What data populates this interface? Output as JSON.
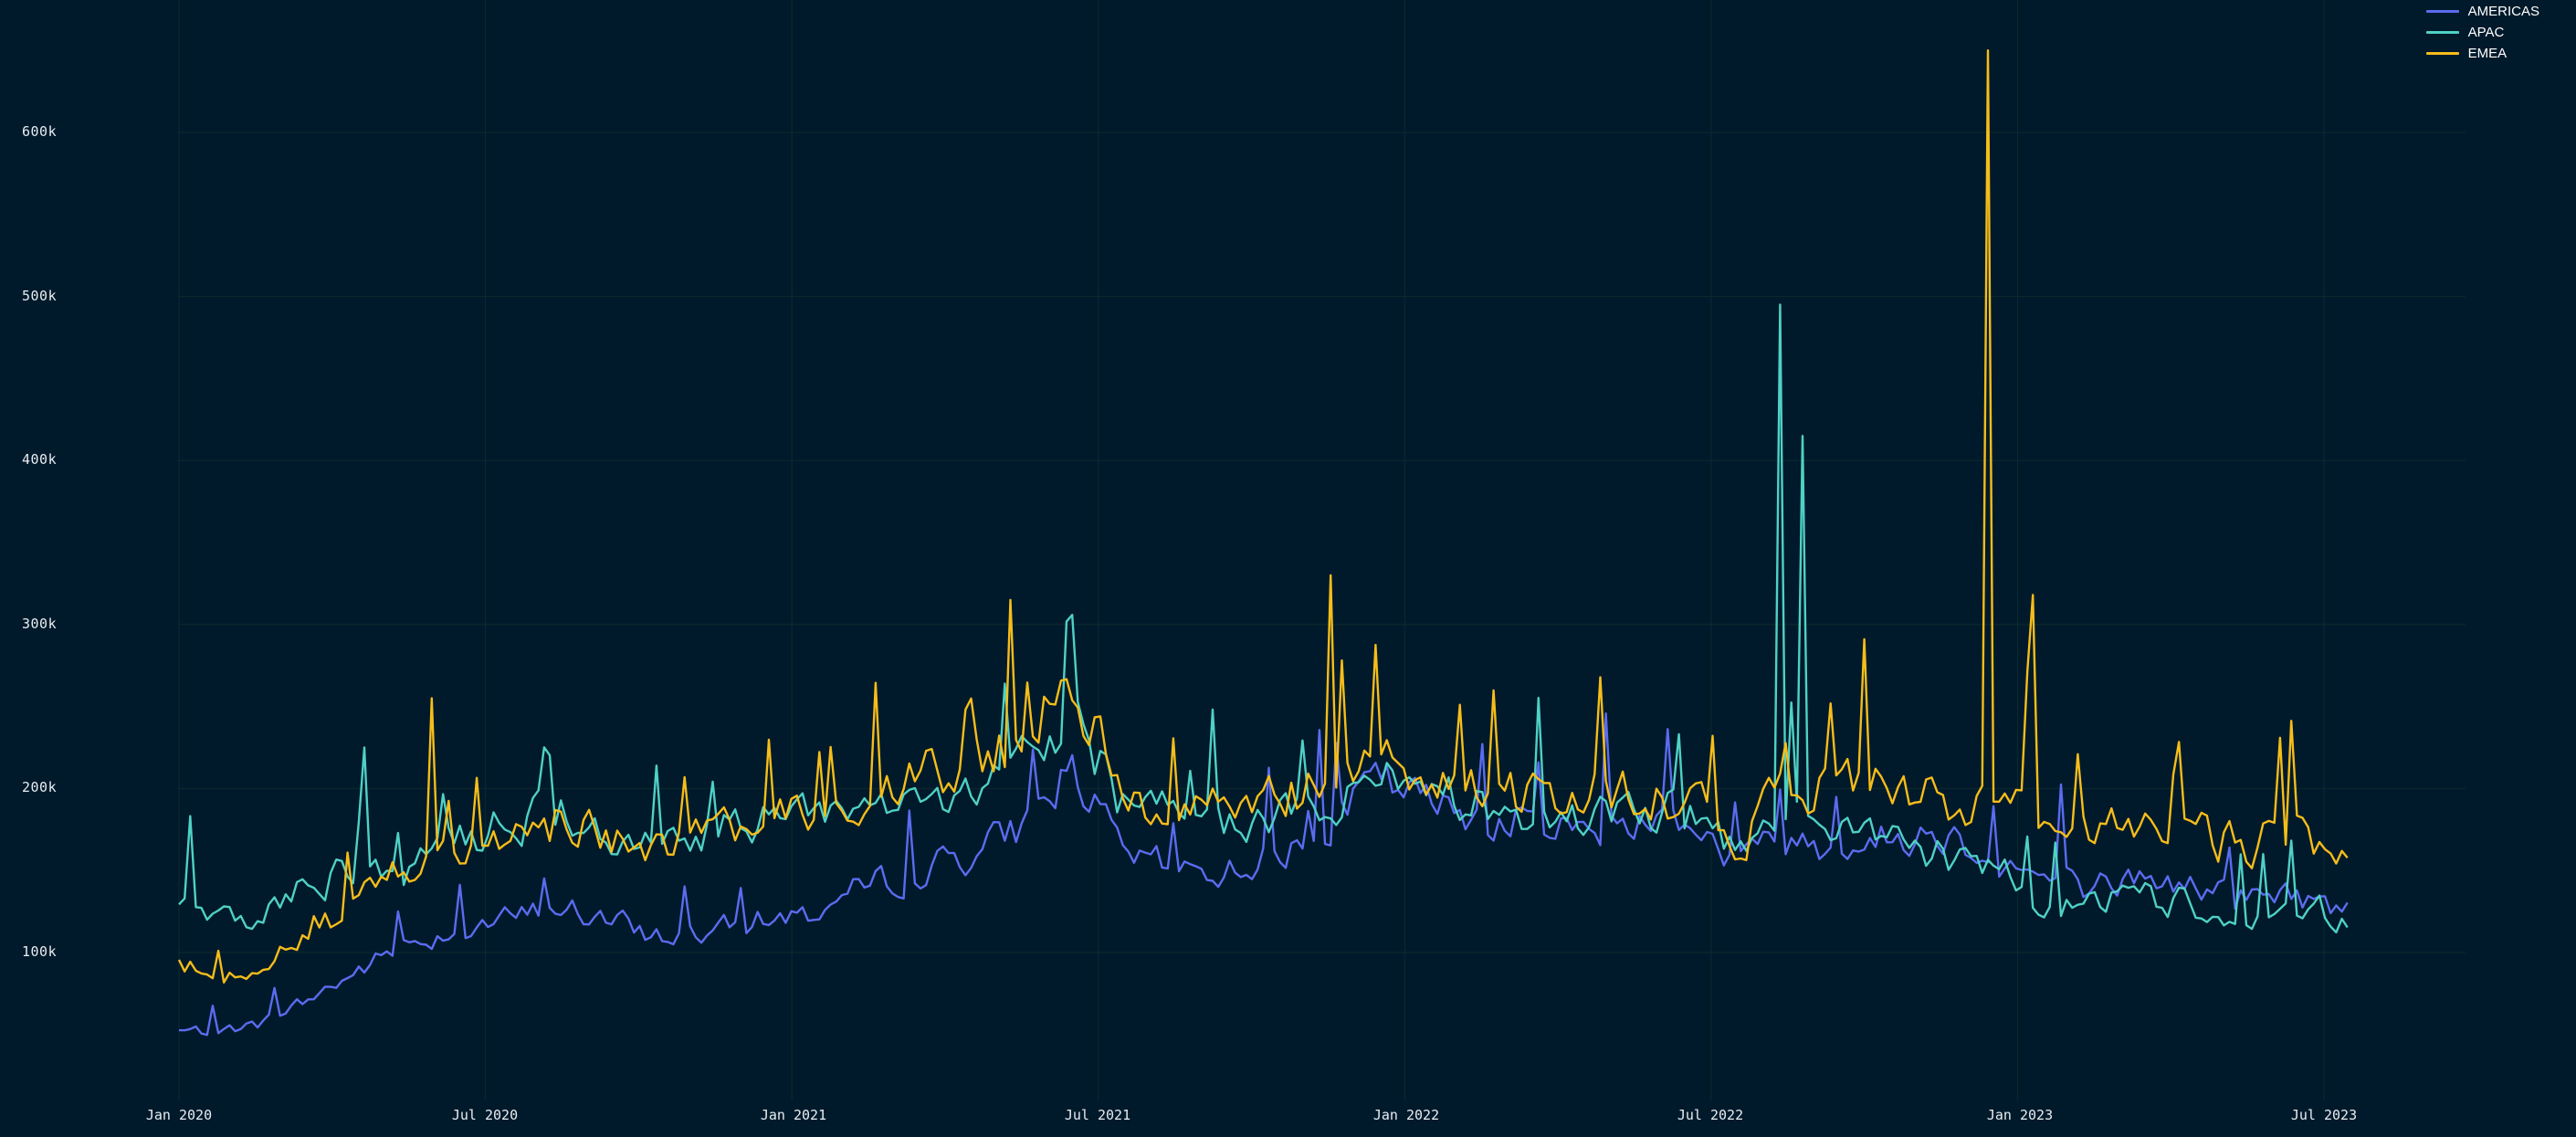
{
  "chart_data": {
    "type": "line",
    "title": "",
    "xlabel": "",
    "ylabel": "",
    "x_ticks": [
      "Jan 2020",
      "Jul 2020",
      "Jan 2021",
      "Jul 2021",
      "Jan 2022",
      "Jul 2022",
      "Jan 2023",
      "Jul 2023"
    ],
    "y_ticks": [
      "100k",
      "200k",
      "300k",
      "400k",
      "500k",
      "600k"
    ],
    "ylim": [
      0,
      660000
    ],
    "xrange": [
      "2020-01-01",
      "2023-07-15"
    ],
    "grid": true,
    "legend_position": "top-right",
    "series": [
      {
        "name": "AMERICAS",
        "color": "#5b6cf0",
        "x": [
          "2020-01",
          "2020-02",
          "2020-03",
          "2020-04",
          "2020-05",
          "2020-06",
          "2020-07",
          "2020-08",
          "2020-09",
          "2020-10",
          "2020-11",
          "2020-12",
          "2021-01",
          "2021-02",
          "2021-03",
          "2021-04",
          "2021-05",
          "2021-06",
          "2021-07",
          "2021-08",
          "2021-09",
          "2021-10",
          "2021-11",
          "2021-12",
          "2022-01",
          "2022-02",
          "2022-03",
          "2022-04",
          "2022-05",
          "2022-06",
          "2022-07",
          "2022-08",
          "2022-09",
          "2022-10",
          "2022-11",
          "2022-12",
          "2023-01",
          "2023-02",
          "2023-03",
          "2023-04",
          "2023-05",
          "2023-06",
          "2023-07"
        ],
        "values": [
          52000,
          55000,
          70000,
          88000,
          105000,
          115000,
          120000,
          128000,
          118000,
          110000,
          112000,
          120000,
          125000,
          140000,
          150000,
          160000,
          175000,
          215000,
          160000,
          150000,
          150000,
          160000,
          175000,
          205000,
          190000,
          185000,
          180000,
          175000,
          180000,
          185000,
          155000,
          170000,
          165000,
          170000,
          175000,
          160000,
          145000,
          140000,
          145000,
          140000,
          135000,
          135000,
          125000
        ]
      },
      {
        "name": "APAC",
        "color": "#4fd1c5",
        "x": [
          "2020-01",
          "2020-02",
          "2020-03",
          "2020-04",
          "2020-05",
          "2020-06",
          "2020-07",
          "2020-08",
          "2020-09",
          "2020-10",
          "2020-11",
          "2020-12",
          "2021-01",
          "2021-02",
          "2021-03",
          "2021-04",
          "2021-05",
          "2021-06",
          "2021-07",
          "2021-08",
          "2021-09",
          "2021-10",
          "2021-11",
          "2021-12",
          "2022-01",
          "2022-02",
          "2022-03",
          "2022-04",
          "2022-05",
          "2022-06",
          "2022-07",
          "2022-08",
          "2022-09",
          "2022-10",
          "2022-11",
          "2022-12",
          "2023-01",
          "2023-02",
          "2023-03",
          "2023-04",
          "2023-05",
          "2023-06",
          "2023-07"
        ],
        "values": [
          125000,
          120000,
          140000,
          150000,
          150000,
          165000,
          180000,
          185000,
          170000,
          165000,
          175000,
          180000,
          180000,
          190000,
          195000,
          200000,
          210000,
          250000,
          190000,
          185000,
          180000,
          185000,
          190000,
          210000,
          195000,
          190000,
          180000,
          185000,
          190000,
          185000,
          160000,
          180000,
          175000,
          165000,
          160000,
          150000,
          135000,
          130000,
          135000,
          130000,
          125000,
          130000,
          120000
        ],
        "spikes": [
          {
            "x": "2022-08-10",
            "value": 495000
          },
          {
            "x": "2022-08-24",
            "value": 415000
          },
          {
            "x": "2020-04-20",
            "value": 225000
          }
        ]
      },
      {
        "name": "EMEA",
        "color": "#f6bd1a",
        "x": [
          "2020-01",
          "2020-02",
          "2020-03",
          "2020-04",
          "2020-05",
          "2020-06",
          "2020-07",
          "2020-08",
          "2020-09",
          "2020-10",
          "2020-11",
          "2020-12",
          "2021-01",
          "2021-02",
          "2021-03",
          "2021-04",
          "2021-05",
          "2021-06",
          "2021-07",
          "2021-08",
          "2021-09",
          "2021-10",
          "2021-11",
          "2021-12",
          "2022-01",
          "2022-02",
          "2022-03",
          "2022-04",
          "2022-05",
          "2022-06",
          "2022-07",
          "2022-08",
          "2022-09",
          "2022-10",
          "2022-11",
          "2022-12",
          "2023-01",
          "2023-02",
          "2023-03",
          "2023-04",
          "2023-05",
          "2023-06",
          "2023-07"
        ],
        "values": [
          90000,
          95000,
          115000,
          130000,
          150000,
          160000,
          170000,
          180000,
          170000,
          160000,
          170000,
          180000,
          185000,
          195000,
          205000,
          215000,
          225000,
          270000,
          200000,
          190000,
          190000,
          195000,
          200000,
          220000,
          205000,
          200000,
          195000,
          200000,
          200000,
          190000,
          170000,
          195000,
          200000,
          205000,
          190000,
          185000,
          180000,
          175000,
          175000,
          170000,
          165000,
          175000,
          150000
        ],
        "spikes": [
          {
            "x": "2020-06-01",
            "value": 255000
          },
          {
            "x": "2021-11-18",
            "value": 330000
          },
          {
            "x": "2022-12-15",
            "value": 650000
          },
          {
            "x": "2023-01-10",
            "value": 318000
          },
          {
            "x": "2021-05-10",
            "value": 315000
          }
        ]
      }
    ]
  },
  "legend": {
    "items": [
      {
        "label": "AMERICAS",
        "color": "#5b6cf0"
      },
      {
        "label": "APAC",
        "color": "#4fd1c5"
      },
      {
        "label": "EMEA",
        "color": "#f6bd1a"
      }
    ]
  },
  "axes": {
    "y_labels": [
      "600k",
      "500k",
      "400k",
      "300k",
      "200k",
      "100k"
    ],
    "x_labels": [
      "Jan 2020",
      "Jul 2020",
      "Jan 2021",
      "Jul 2021",
      "Jan 2022",
      "Jul 2022",
      "Jan 2023",
      "Jul 2023"
    ]
  },
  "colors": {
    "background": "#011a2b",
    "grid": "#0c2a2e",
    "text": "#e8edf2"
  }
}
